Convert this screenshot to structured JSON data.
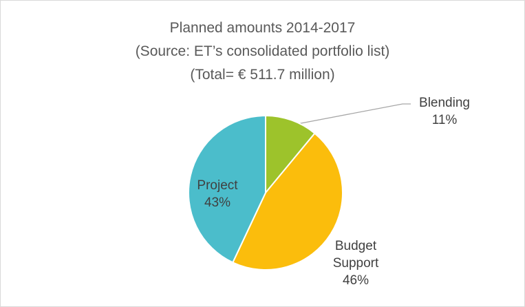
{
  "chart_data": {
    "type": "pie",
    "title": "Planned amounts 2014-2017",
    "subtitle": [
      "(Source: ET’s consolidated portfolio list)",
      "(Total=  € 511.7 million)"
    ],
    "categories": [
      "Blending",
      "Budget Support",
      "Project"
    ],
    "values": [
      11,
      46,
      43
    ],
    "value_labels": [
      "11%",
      "46%",
      "43%"
    ],
    "colors": [
      "#9dc32b",
      "#fbbd0c",
      "#4bbdcb"
    ]
  }
}
